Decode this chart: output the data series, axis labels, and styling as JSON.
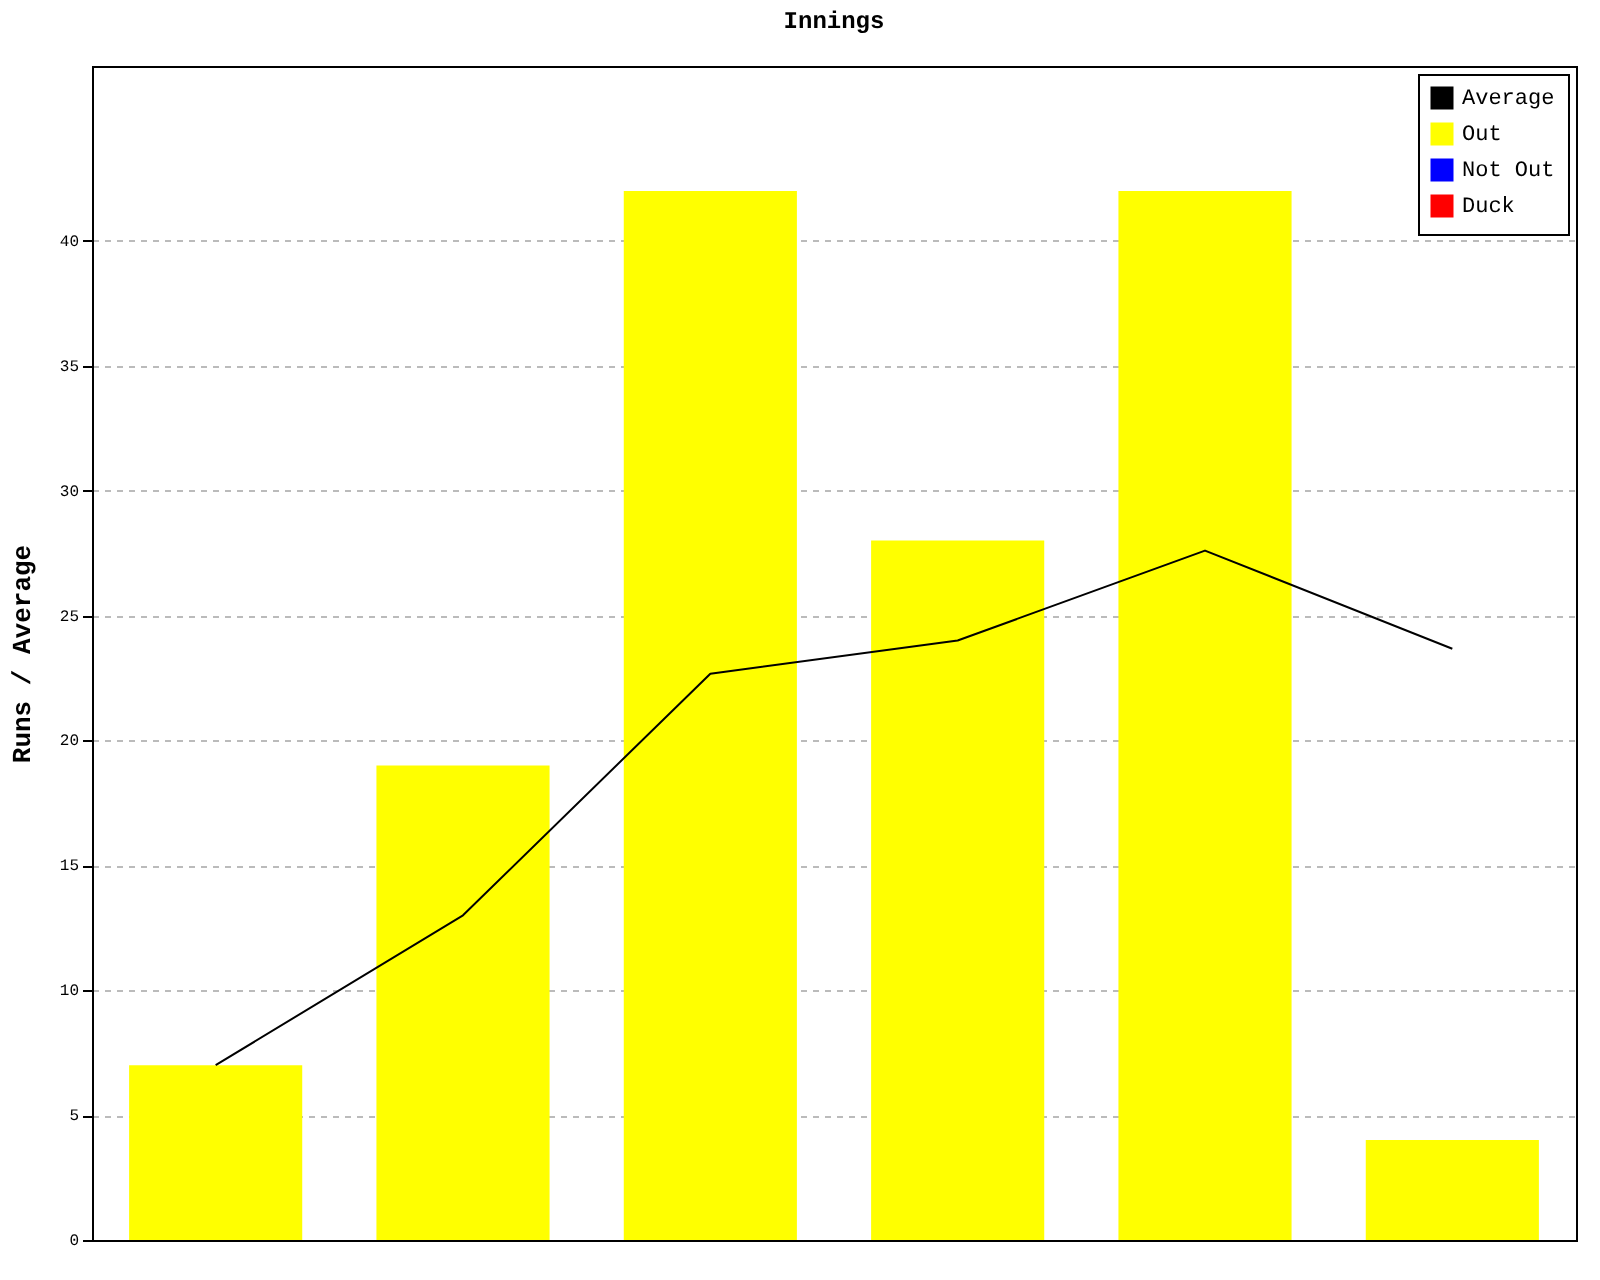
{
  "chart_data": {
    "type": "bar",
    "title": "Innings",
    "ylabel": "Runs / Average",
    "categories": [
      null,
      null,
      null,
      null,
      null,
      null
    ],
    "series": [
      {
        "name": "Average",
        "type": "line",
        "color": "#000000",
        "values": [
          7,
          13,
          22.67,
          24,
          27.6,
          23.67
        ]
      },
      {
        "name": "Out",
        "color": "#ffff00",
        "values": [
          7,
          19,
          42,
          28,
          42,
          4
        ]
      },
      {
        "name": "Not Out",
        "color": "#0000ff",
        "values": [
          null,
          null,
          null,
          null,
          null,
          null
        ]
      },
      {
        "name": "Duck",
        "color": "#ff0000",
        "values": [
          null,
          null,
          null,
          null,
          null,
          null
        ]
      }
    ],
    "ylim": [
      0,
      47
    ],
    "yticks": [
      0,
      5,
      10,
      15,
      20,
      25,
      30,
      35,
      40
    ],
    "grid": "y",
    "legend": "top right",
    "tick_labels": "y",
    "marker": "none",
    "line_style": "solid"
  }
}
